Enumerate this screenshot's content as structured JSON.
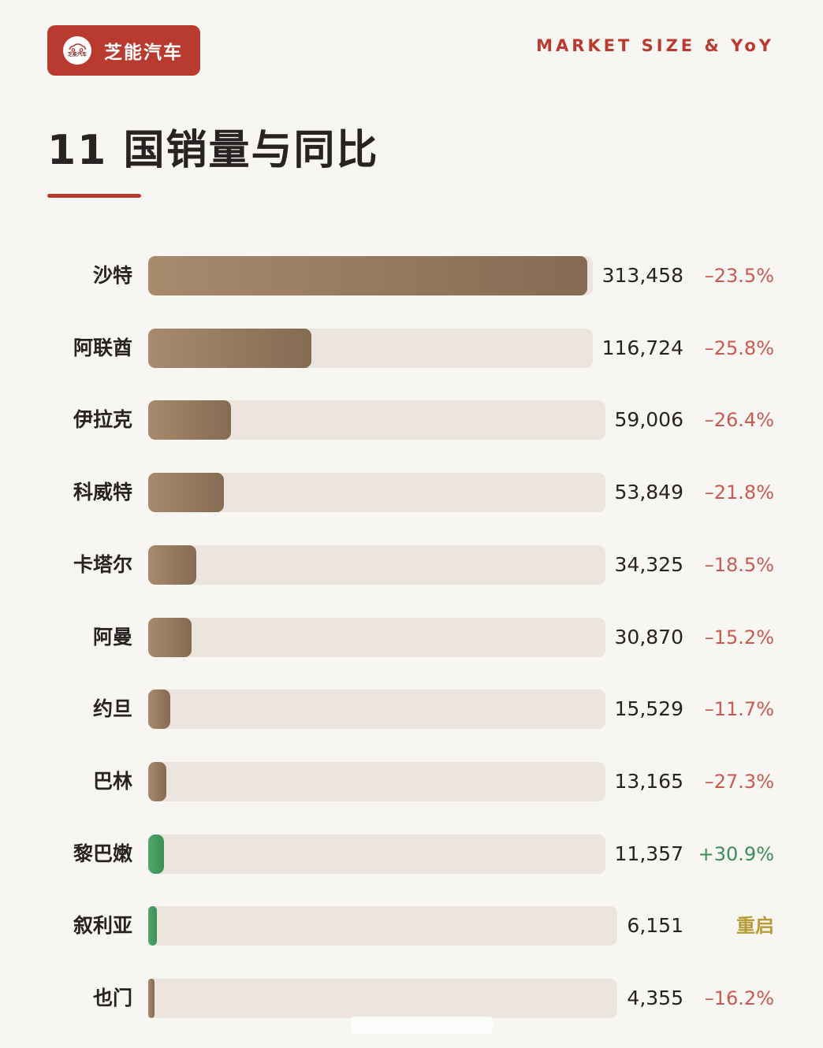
{
  "brand": {
    "name": "芝能汽车",
    "logo_text": "芝能汽车",
    "logo_icon": "car-outline-icon",
    "color": "#b93a2f"
  },
  "tagline": "MARKET SIZE & YoY",
  "title": "11 国销量与同比",
  "colors": {
    "bar": "#8f7458",
    "track": "#ece5dd",
    "negative": "#c85a52",
    "positive": "#3c8e56",
    "note": "#b89a36",
    "accent": "#b93a2f"
  },
  "chart_data": {
    "type": "bar",
    "orientation": "horizontal",
    "categories": [
      "沙特",
      "阿联酋",
      "伊拉克",
      "科威特",
      "卡塔尔",
      "阿曼",
      "约旦",
      "巴林",
      "黎巴嫩",
      "叙利亚",
      "也门"
    ],
    "values": [
      313458,
      116724,
      59006,
      53849,
      34325,
      30870,
      15529,
      13165,
      11357,
      6151,
      4355
    ],
    "value_labels": [
      "313,458",
      "116,724",
      "59,006",
      "53,849",
      "34,325",
      "30,870",
      "15,529",
      "13,165",
      "11,357",
      "6,151",
      "4,355"
    ],
    "yoy_labels": [
      "–23.5%",
      "–25.8%",
      "–26.4%",
      "–21.8%",
      "–18.5%",
      "–15.2%",
      "–11.7%",
      "–27.3%",
      "+30.9%",
      "重启",
      "–16.2%"
    ],
    "yoy_values": [
      -23.5,
      -25.8,
      -26.4,
      -21.8,
      -18.5,
      -15.2,
      -11.7,
      -27.3,
      30.9,
      null,
      -16.2
    ],
    "yoy_types": [
      "neg",
      "neg",
      "neg",
      "neg",
      "neg",
      "neg",
      "neg",
      "neg",
      "pos",
      "note",
      "neg"
    ],
    "bar_colors": [
      "brown",
      "brown",
      "brown",
      "brown",
      "brown",
      "brown",
      "brown",
      "brown",
      "green",
      "green",
      "brown"
    ],
    "xlim": [
      0,
      313458
    ],
    "title": "11 国销量与同比",
    "xlabel": "",
    "ylabel": "",
    "grid": false,
    "legend": false
  }
}
